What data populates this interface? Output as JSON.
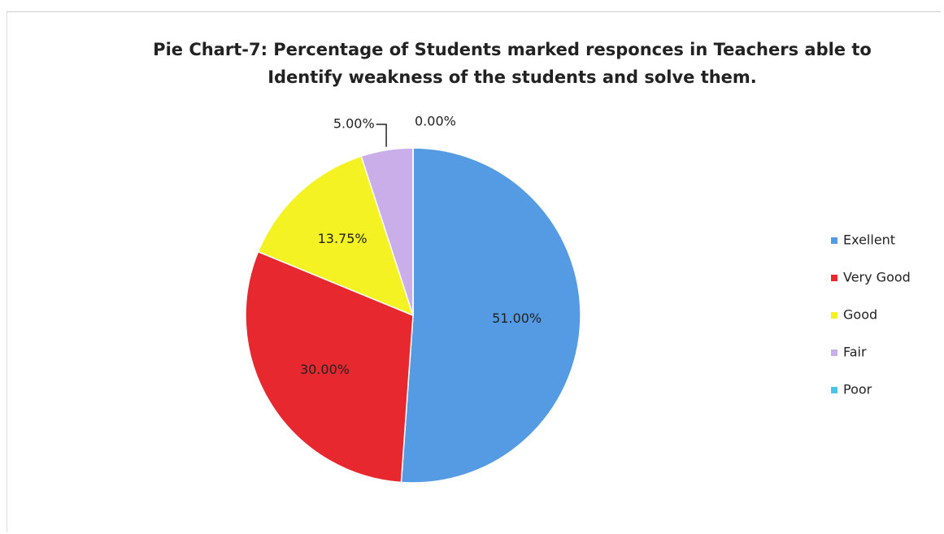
{
  "chart_data": {
    "type": "pie",
    "title": "Pie Chart-7: Percentage of Students marked responces in Teachers able to Identify weakness of the students and solve them.",
    "categories": [
      "Exellent",
      "Very Good",
      "Good",
      "Fair",
      "Poor"
    ],
    "values": [
      51,
      30,
      13.75,
      5,
      0
    ],
    "value_labels": [
      "51.00%",
      "30.00%",
      "13.75%",
      "5.00%",
      "0.00%"
    ],
    "colors": [
      "#559be3",
      "#e8282f",
      "#f4f222",
      "#c9aeea",
      "#4cc4e8"
    ],
    "legend": "right"
  }
}
